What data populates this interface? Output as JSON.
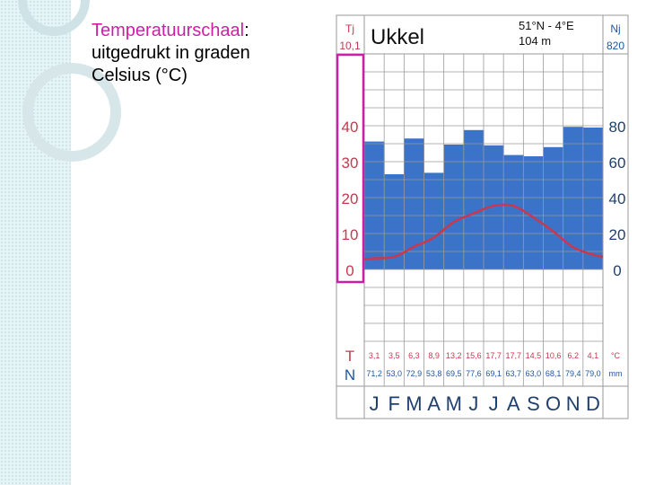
{
  "slide": {
    "term": "Temperatuurschaal",
    "colon": ":",
    "line2": "uitgedrukt in graden",
    "line3": "Celsius (°C)"
  },
  "colors": {
    "highlight": "#cc1fa6",
    "precip_fill": "#3b73c8",
    "temp_line": "#c8384e",
    "temp_text": "#c8384e",
    "precip_text": "#1c57a6"
  },
  "chart_data": {
    "type": "bar",
    "title": "Ukkel",
    "coords": "51°N - 4°E",
    "altitude": "104 m",
    "left_header": "Tj",
    "left_value": "10,1",
    "right_header": "Nj",
    "right_value": "820",
    "categories": [
      "J",
      "F",
      "M",
      "A",
      "M",
      "J",
      "J",
      "A",
      "S",
      "O",
      "N",
      "D"
    ],
    "temp_ticks": [
      "40",
      "30",
      "20",
      "10",
      "0"
    ],
    "precip_ticks": [
      "80",
      "60",
      "40",
      "20",
      "0"
    ],
    "temp_ylim": [
      0,
      40
    ],
    "precip_ylim": [
      0,
      80
    ],
    "temp_row_label": "T",
    "precip_row_label": "N",
    "temp_unit": "°C",
    "precip_unit": "mm",
    "temp_values_text": [
      "3,1",
      "3,5",
      "6,3",
      "8,9",
      "13,2",
      "15,6",
      "17,7",
      "17,7",
      "14,5",
      "10,6",
      "6,2",
      "4,1"
    ],
    "precip_values_text": [
      "71,2",
      "53,0",
      "72,9",
      "53,8",
      "69,5",
      "77,6",
      "69,1",
      "63,7",
      "63,0",
      "68,1",
      "79,4",
      "79,0"
    ],
    "series": [
      {
        "name": "T",
        "type": "line",
        "values": [
          3.1,
          3.5,
          6.3,
          8.9,
          13.2,
          15.6,
          17.7,
          17.7,
          14.5,
          10.6,
          6.2,
          4.1
        ]
      },
      {
        "name": "N",
        "type": "bar",
        "values": [
          71.2,
          53.0,
          72.9,
          53.8,
          69.5,
          77.6,
          69.1,
          63.7,
          63.0,
          68.1,
          79.4,
          79.0
        ]
      }
    ]
  }
}
